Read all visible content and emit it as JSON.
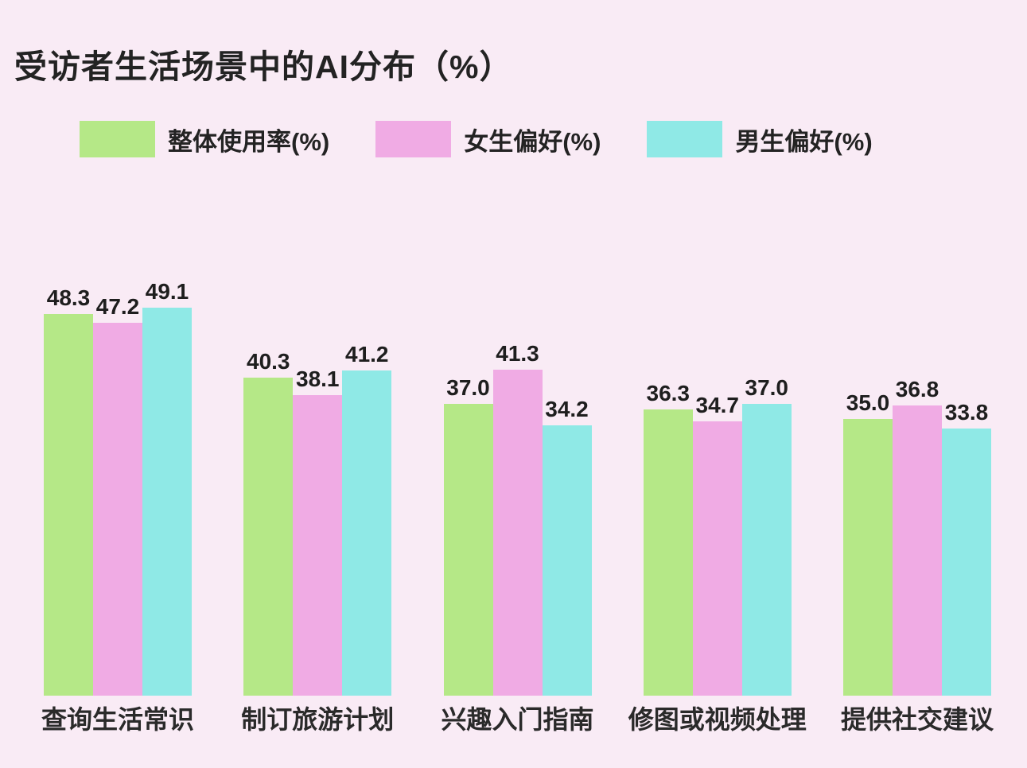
{
  "title": "受访者生活场景中的AI分布（%）",
  "colors": {
    "background": "#f9ebf5",
    "text": "#232323",
    "series_green": "#b5e887",
    "series_pink": "#f0abe4",
    "series_cyan": "#8fe9e6"
  },
  "chart_data": {
    "type": "bar",
    "title": "受访者生活场景中的AI分布（%）",
    "categories": [
      "查询生活常识",
      "制订旅游计划",
      "兴趣入门指南",
      "修图或视频处理",
      "提供社交建议"
    ],
    "series": [
      {
        "key": "overall",
        "name": "整体使用率(%)",
        "color": "#b5e887",
        "values": [
          48.3,
          40.3,
          37.0,
          36.3,
          35.0
        ]
      },
      {
        "key": "female",
        "name": "女生偏好(%)",
        "color": "#f0abe4",
        "values": [
          47.2,
          38.1,
          41.3,
          34.7,
          36.8
        ]
      },
      {
        "key": "male",
        "name": "男生偏好(%)",
        "color": "#8fe9e6",
        "values": [
          49.1,
          41.2,
          34.2,
          37.0,
          33.8
        ]
      }
    ],
    "xlabel": "",
    "ylabel": "",
    "ylim": [
      0,
      55
    ],
    "grid": false,
    "axes_visible": false,
    "legend_position": "top-left",
    "value_labels": "one-decimal, above each bar"
  }
}
